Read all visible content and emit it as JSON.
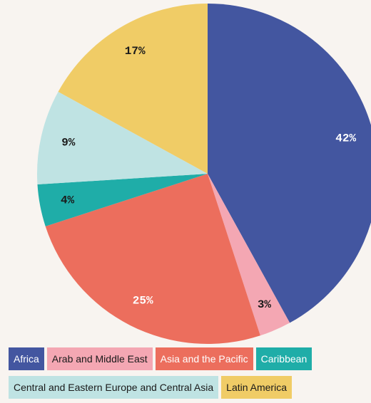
{
  "chart_data": {
    "type": "pie",
    "categories": [
      "Africa",
      "Arab and Middle East",
      "Asia and the Pacific",
      "Caribbean",
      "Central and Eastern Europe and Central Asia",
      "Latin America"
    ],
    "values": [
      42,
      3,
      25,
      4,
      9,
      17
    ],
    "value_labels": [
      "42%",
      "3%",
      "25%",
      "4%",
      "9%",
      "17%"
    ],
    "colors": [
      "#4356a0",
      "#f4a7b3",
      "#ec6e5d",
      "#1fada8",
      "#bfe3e3",
      "#f0cc66"
    ],
    "label_colors": [
      "#ffffff",
      "#1a1a1a",
      "#ffffff",
      "#1a1a1a",
      "#1a1a1a",
      "#1a1a1a"
    ],
    "legend_label_colors": [
      "#ffffff",
      "#1a1a1a",
      "#ffffff",
      "#ffffff",
      "#1a1a1a",
      "#1a1a1a"
    ]
  }
}
